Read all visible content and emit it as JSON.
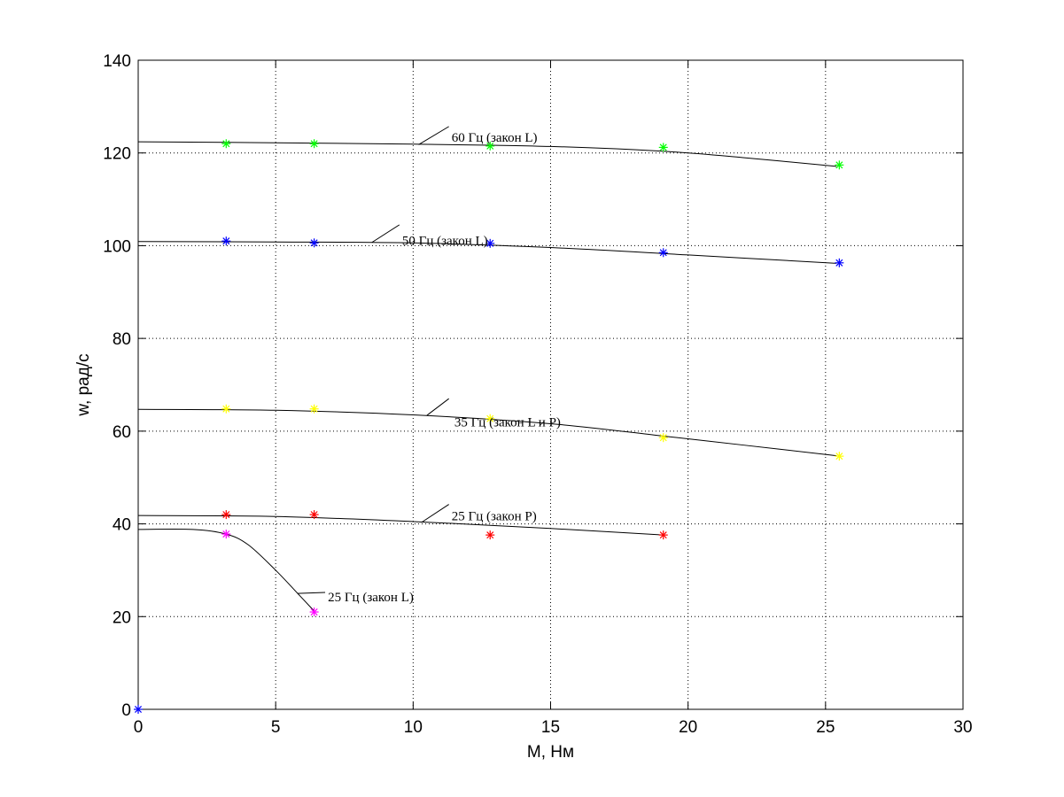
{
  "chart_data": {
    "type": "line",
    "title": "",
    "xlabel": "M, Нм",
    "ylabel": "w, рад/с",
    "xlim": [
      0,
      30
    ],
    "ylim": [
      0,
      140
    ],
    "xticks": [
      0,
      5,
      10,
      15,
      20,
      25,
      30
    ],
    "yticks": [
      0,
      20,
      40,
      60,
      80,
      100,
      120,
      140
    ],
    "grid": true,
    "series": [
      {
        "name": "60 Гц (закон L)",
        "marker_color": "#00ff00",
        "points": [
          [
            3.2,
            122
          ],
          [
            6.4,
            122
          ],
          [
            12.8,
            121.5
          ],
          [
            19.1,
            121.2
          ],
          [
            25.5,
            117.4
          ]
        ],
        "curve": [
          [
            0,
            122.4
          ],
          [
            5,
            122.2
          ],
          [
            10,
            121.9
          ],
          [
            15,
            121.4
          ],
          [
            19,
            120.4
          ],
          [
            22,
            119.0
          ],
          [
            25.4,
            117.1
          ]
        ]
      },
      {
        "name": "50 Гц (закон L)",
        "marker_color": "#0000ff",
        "points": [
          [
            3.2,
            101
          ],
          [
            6.4,
            100.6
          ],
          [
            12.8,
            100.5
          ],
          [
            19.1,
            98.5
          ],
          [
            25.5,
            96.3
          ]
        ],
        "curve": [
          [
            0,
            100.9
          ],
          [
            5,
            100.8
          ],
          [
            10,
            100.6
          ],
          [
            15,
            99.6
          ],
          [
            20,
            98.0
          ],
          [
            25.4,
            96.2
          ]
        ]
      },
      {
        "name": "35 Гц (закон L и P)",
        "marker_color": "#ffff00",
        "points": [
          [
            3.2,
            64.8
          ],
          [
            6.4,
            64.8
          ],
          [
            12.8,
            62.7
          ],
          [
            19.1,
            58.6
          ],
          [
            25.5,
            54.6
          ]
        ],
        "curve": [
          [
            0,
            64.7
          ],
          [
            5,
            64.5
          ],
          [
            10,
            63.5
          ],
          [
            15,
            61.6
          ],
          [
            19,
            59.0
          ],
          [
            22,
            57.0
          ],
          [
            25.4,
            54.7
          ]
        ]
      },
      {
        "name": "25 Гц (закон P)",
        "marker_color": "#ff0000",
        "points": [
          [
            3.2,
            42
          ],
          [
            6.4,
            42
          ],
          [
            12.8,
            37.6
          ],
          [
            19.1,
            37.6
          ]
        ],
        "curve": [
          [
            0,
            41.8
          ],
          [
            5,
            41.6
          ],
          [
            10,
            40.5
          ],
          [
            15,
            39.0
          ],
          [
            19.1,
            37.6
          ]
        ]
      },
      {
        "name": "25 Гц (закон L)",
        "marker_color": "#ff00ff",
        "points": [
          [
            3.2,
            37.8
          ],
          [
            6.4,
            21
          ]
        ],
        "curve": [
          [
            0,
            38.8
          ],
          [
            2.0,
            38.8
          ],
          [
            3.2,
            37.8
          ],
          [
            4.0,
            35.5
          ],
          [
            5.0,
            30.0
          ],
          [
            5.8,
            25.0
          ],
          [
            6.4,
            21.2
          ]
        ]
      },
      {
        "name": "",
        "marker_color": "#0000ff",
        "points": [
          [
            0,
            0
          ]
        ],
        "curve": []
      }
    ],
    "annotations": [
      {
        "text": "60 Гц (закон L)",
        "text_at": [
          11.4,
          122.4
        ],
        "leader_from": [
          10.2,
          121.8
        ],
        "leader_to": [
          11.3,
          125.7
        ]
      },
      {
        "text": "50 Гц (закон L)",
        "text_at": [
          9.6,
          100.2
        ],
        "leader_from": [
          8.5,
          100.7
        ],
        "leader_to": [
          9.5,
          104.5
        ]
      },
      {
        "text": "35 Гц (закон L и P)",
        "text_at": [
          11.5,
          61.0
        ],
        "leader_from": [
          10.5,
          63.4
        ],
        "leader_to": [
          11.3,
          67.0
        ]
      },
      {
        "text": "25 Гц (закон P)",
        "text_at": [
          11.4,
          40.8
        ],
        "leader_from": [
          10.3,
          40.3
        ],
        "leader_to": [
          11.3,
          44.2
        ]
      },
      {
        "text": "25 Гц (закон L)",
        "text_at": [
          6.9,
          23.3
        ],
        "leader_from": [
          5.8,
          25.0
        ],
        "leader_to": [
          6.8,
          25.2
        ]
      }
    ]
  }
}
